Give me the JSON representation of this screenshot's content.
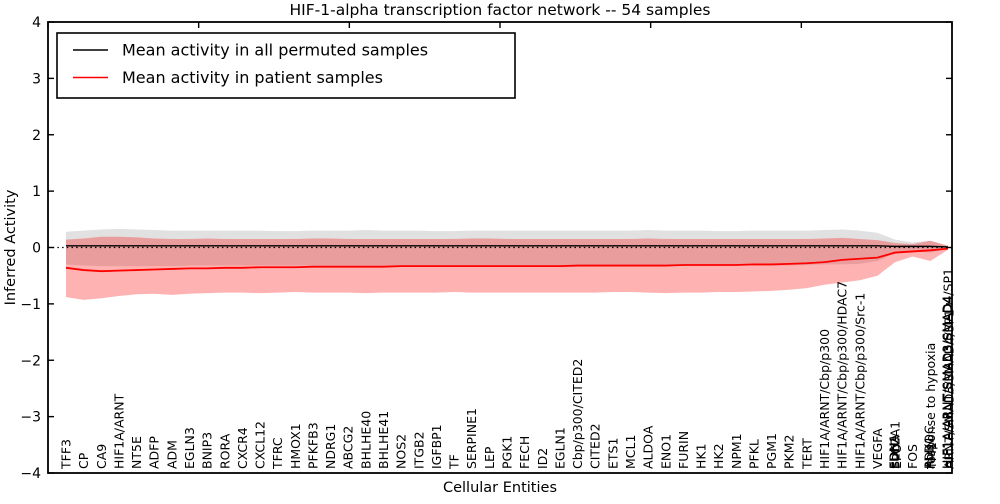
{
  "title": "HIF-1-alpha transcription factor network -- 54 samples",
  "axes": {
    "xlabel": "Cellular Entities",
    "ylabel": "Inferred Activity",
    "yticks": [
      "4",
      "3",
      "2",
      "1",
      "0",
      "−1",
      "−2",
      "−3",
      "−4"
    ],
    "ylim": [
      -4,
      4
    ],
    "zero_line": "dotted"
  },
  "legend": {
    "items": [
      {
        "label": "Mean activity in all permuted samples",
        "color": "#000000"
      },
      {
        "label": "Mean activity in patient samples",
        "color": "#ff0000"
      }
    ]
  },
  "chart_data": {
    "type": "line",
    "title": "HIF-1-alpha transcription factor network -- 54 samples",
    "xlabel": "Cellular Entities",
    "ylabel": "Inferred Activity",
    "ylim": [
      -4,
      4
    ],
    "grid": false,
    "legend_position": "upper left",
    "categories": [
      "TFF3",
      "CP",
      "CA9",
      "HIF1A/ARNT",
      "NT5E",
      "ADFP",
      "ADM",
      "EGLN3",
      "BNIP3",
      "RORA",
      "CXCR4",
      "CXCL12",
      "TFRC",
      "HMOX1",
      "PFKFB3",
      "NDRG1",
      "ABCG2",
      "BHLHE40",
      "BHLHE41",
      "NOS2",
      "ITGB2",
      "IGFBP1",
      "TF",
      "SERPINE1",
      "LEP",
      "PGK1",
      "FECH",
      "ID2",
      "EGLN1",
      "Cbp/p300/CITED2",
      "CITED2",
      "ETS1",
      "MCL1",
      "ALDOA",
      "ENO1",
      "FURIN",
      "HK1",
      "HK2",
      "NPM1",
      "PFKL",
      "PGM1",
      "PKM2",
      "TERT",
      "HIF1A/ARNT/Cbp/p300",
      "HIF1A/ARNT/Cbp/p300/HDAC7",
      "HIF1A/ARNT/Cbp/p300/Src-1",
      "VEGFA",
      "SLC2A1",
      "FOS",
      "response to hypoxia",
      "HIF1A/ARNT/SMAD3/SMAD4/SP1"
    ],
    "overlapped_labels": {
      "47": [
        "EDN1",
        "EPO",
        "LDHA"
      ],
      "49": [
        "PDK1",
        "TPI1",
        "ALDOC"
      ],
      "50": [
        "HIF1A/ARNT/SMAD3/SMAD4",
        "ARNT/SMAD3/SMAD4/SP1"
      ]
    },
    "series": [
      {
        "name": "Mean activity in all permuted samples",
        "color": "#000000",
        "values": [
          0.03,
          0.03,
          0.03,
          0.03,
          0.03,
          0.03,
          0.03,
          0.03,
          0.03,
          0.03,
          0.03,
          0.03,
          0.03,
          0.03,
          0.03,
          0.03,
          0.03,
          0.03,
          0.03,
          0.03,
          0.03,
          0.03,
          0.03,
          0.03,
          0.03,
          0.03,
          0.03,
          0.03,
          0.03,
          0.03,
          0.03,
          0.03,
          0.03,
          0.03,
          0.03,
          0.03,
          0.03,
          0.03,
          0.03,
          0.03,
          0.03,
          0.03,
          0.03,
          0.03,
          0.03,
          0.03,
          0.03,
          0.02,
          0.02,
          0.02,
          0.01
        ]
      },
      {
        "name": "Mean activity in patient samples",
        "color": "#ff0000",
        "values": [
          -0.36,
          -0.4,
          -0.42,
          -0.41,
          -0.4,
          -0.39,
          -0.38,
          -0.37,
          -0.37,
          -0.36,
          -0.36,
          -0.35,
          -0.35,
          -0.35,
          -0.34,
          -0.34,
          -0.34,
          -0.34,
          -0.34,
          -0.33,
          -0.33,
          -0.33,
          -0.33,
          -0.33,
          -0.33,
          -0.33,
          -0.33,
          -0.33,
          -0.33,
          -0.32,
          -0.32,
          -0.32,
          -0.32,
          -0.32,
          -0.32,
          -0.31,
          -0.31,
          -0.31,
          -0.31,
          -0.3,
          -0.3,
          -0.29,
          -0.28,
          -0.26,
          -0.22,
          -0.2,
          -0.18,
          -0.09,
          -0.07,
          -0.05,
          -0.02
        ]
      }
    ],
    "bands": [
      {
        "name": "permuted samples range",
        "color": "rgba(120,120,120,0.22)",
        "upper": [
          0.28,
          0.3,
          0.32,
          0.33,
          0.32,
          0.31,
          0.3,
          0.3,
          0.3,
          0.3,
          0.3,
          0.3,
          0.29,
          0.29,
          0.3,
          0.3,
          0.3,
          0.31,
          0.3,
          0.3,
          0.3,
          0.29,
          0.29,
          0.3,
          0.3,
          0.3,
          0.3,
          0.3,
          0.3,
          0.3,
          0.3,
          0.3,
          0.3,
          0.31,
          0.3,
          0.3,
          0.3,
          0.29,
          0.29,
          0.3,
          0.3,
          0.3,
          0.3,
          0.31,
          0.32,
          0.3,
          0.26,
          0.14,
          0.09,
          0.12,
          0.03
        ],
        "lower": [
          -0.3,
          -0.32,
          -0.33,
          -0.33,
          -0.33,
          -0.33,
          -0.33,
          -0.32,
          -0.32,
          -0.32,
          -0.32,
          -0.32,
          -0.32,
          -0.32,
          -0.32,
          -0.32,
          -0.32,
          -0.32,
          -0.32,
          -0.32,
          -0.32,
          -0.32,
          -0.32,
          -0.32,
          -0.32,
          -0.32,
          -0.32,
          -0.32,
          -0.32,
          -0.32,
          -0.32,
          -0.32,
          -0.32,
          -0.32,
          -0.32,
          -0.32,
          -0.32,
          -0.32,
          -0.32,
          -0.32,
          -0.32,
          -0.32,
          -0.31,
          -0.3,
          -0.3,
          -0.29,
          -0.24,
          -0.1,
          -0.07,
          -0.09,
          -0.02
        ]
      },
      {
        "name": "patient samples range",
        "color": "rgba(255,0,0,0.30)",
        "upper": [
          0.14,
          0.16,
          0.19,
          0.19,
          0.18,
          0.16,
          0.15,
          0.15,
          0.16,
          0.15,
          0.15,
          0.15,
          0.15,
          0.15,
          0.16,
          0.16,
          0.15,
          0.15,
          0.15,
          0.15,
          0.15,
          0.15,
          0.15,
          0.16,
          0.16,
          0.15,
          0.15,
          0.15,
          0.15,
          0.15,
          0.15,
          0.15,
          0.15,
          0.16,
          0.15,
          0.15,
          0.15,
          0.15,
          0.15,
          0.15,
          0.15,
          0.15,
          0.15,
          0.16,
          0.17,
          0.15,
          0.13,
          0.08,
          0.06,
          0.12,
          0.03
        ],
        "lower": [
          -0.88,
          -0.93,
          -0.9,
          -0.86,
          -0.83,
          -0.82,
          -0.84,
          -0.82,
          -0.81,
          -0.8,
          -0.8,
          -0.81,
          -0.8,
          -0.79,
          -0.8,
          -0.8,
          -0.8,
          -0.81,
          -0.8,
          -0.8,
          -0.8,
          -0.8,
          -0.79,
          -0.8,
          -0.8,
          -0.8,
          -0.8,
          -0.8,
          -0.8,
          -0.8,
          -0.8,
          -0.79,
          -0.79,
          -0.8,
          -0.81,
          -0.8,
          -0.8,
          -0.79,
          -0.79,
          -0.78,
          -0.77,
          -0.75,
          -0.72,
          -0.66,
          -0.62,
          -0.58,
          -0.5,
          -0.26,
          -0.16,
          -0.24,
          -0.04
        ]
      }
    ]
  }
}
